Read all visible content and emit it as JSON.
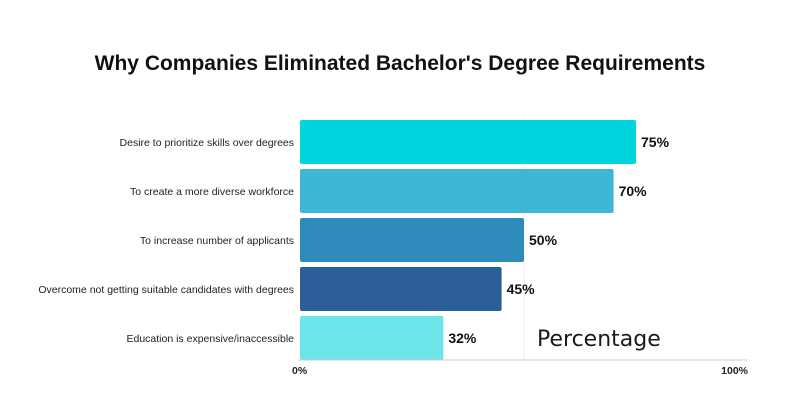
{
  "chart_data": {
    "type": "bar",
    "orientation": "horizontal",
    "title": "Why Companies Eliminated Bachelor's Degree Requirements",
    "categories": [
      "Desire to prioritize skills over degrees",
      "To create a more diverse workforce",
      "To increase number of applicants",
      "Overcome not getting suitable candidates with degrees",
      "Education is expensive/inaccessible"
    ],
    "series": [
      {
        "name": "Percentage",
        "values": [
          75,
          70,
          50,
          45,
          32
        ],
        "labels": [
          "75%",
          "70%",
          "50%",
          "45%",
          "32%"
        ]
      }
    ],
    "bar_colors": [
      "#00d5dd",
      "#3fb6d6",
      "#2f8bbb",
      "#2c5f9a",
      "#6be4ea"
    ],
    "xlim": [
      0,
      100
    ],
    "x_ticks": [
      "0%",
      "100%"
    ],
    "xlabel": "",
    "ylabel": "",
    "grid": false,
    "legend_position": "inside-bottom-right"
  }
}
